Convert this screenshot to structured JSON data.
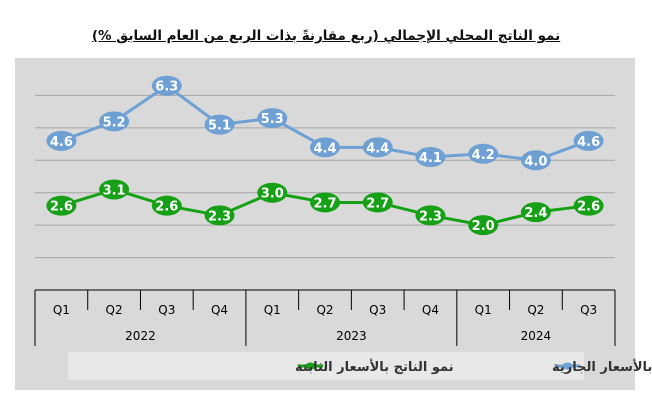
{
  "chart_data": {
    "type": "line",
    "title": "نمو الناتج المحلي الإجمالي (ربع مقارنةً بذات الربع من العام السابق %)",
    "xlabel": "",
    "ylabel": "",
    "categories": [
      "Q1",
      "Q2",
      "Q3",
      "Q4",
      "Q1",
      "Q2",
      "Q3",
      "Q4",
      "Q1",
      "Q2",
      "Q3"
    ],
    "years": [
      {
        "label": "2022",
        "start": 0,
        "end": 3
      },
      {
        "label": "2023",
        "start": 4,
        "end": 7
      },
      {
        "label": "2024",
        "start": 8,
        "end": 10
      }
    ],
    "series": [
      {
        "name": "نمو الناتج بالأسعار الجارية",
        "color": "#6fa0d4",
        "values": [
          4.6,
          5.2,
          6.3,
          5.1,
          5.3,
          4.4,
          4.4,
          4.1,
          4.2,
          4.0,
          4.6
        ],
        "labels": [
          "4.6",
          "5.2",
          "6.3",
          "5.1",
          "5.3",
          "4.4",
          "4.4",
          "4.1",
          "4.2",
          "4.0",
          "4.6"
        ]
      },
      {
        "name": "نمو الناتج بالأسعار الثابتة",
        "color": "#16a016",
        "values": [
          2.6,
          3.1,
          2.6,
          2.3,
          3.0,
          2.7,
          2.7,
          2.3,
          2.0,
          2.4,
          2.6
        ],
        "labels": [
          "2.6",
          "3.1",
          "2.6",
          "2.3",
          "3.0",
          "2.7",
          "2.7",
          "2.3",
          "2.0",
          "2.4",
          "2.6"
        ]
      }
    ],
    "ylim": [
      0,
      7
    ],
    "grid": true,
    "legend": "bottom"
  }
}
